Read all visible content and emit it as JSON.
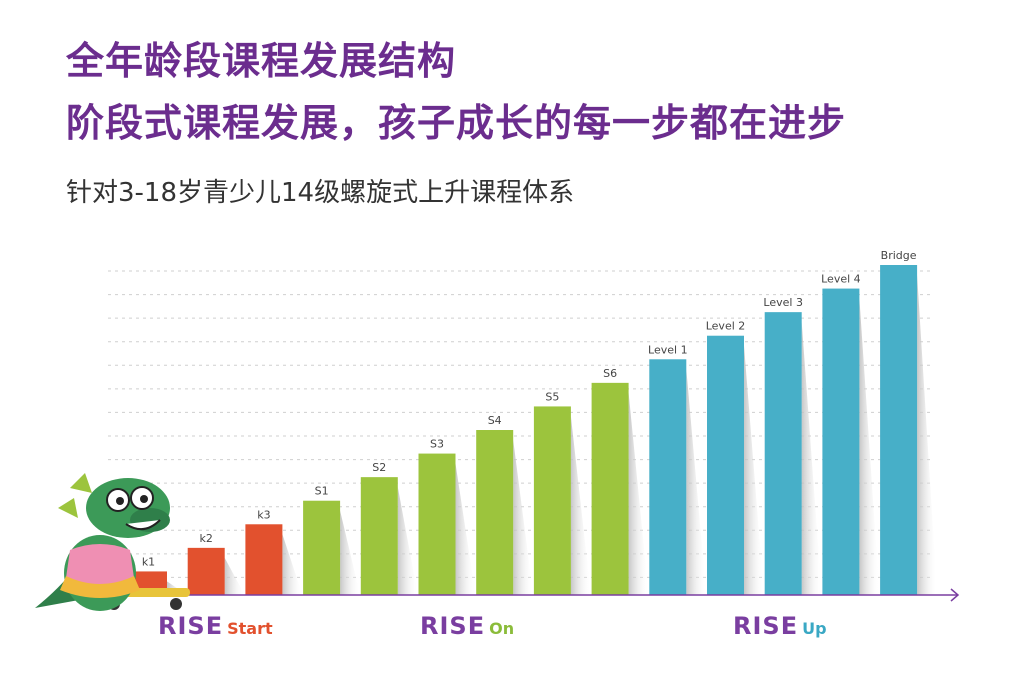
{
  "heading": {
    "title": "全年龄段课程发展结构",
    "slogan": "阶段式课程发展，孩子成长的每一步都在进步",
    "subtitle": "针对3-18岁青少儿14级螺旋式上升课程体系"
  },
  "brands": {
    "start": {
      "rise": "RISE",
      "suffix": "Start"
    },
    "on": {
      "rise": "RISE",
      "suffix": "On"
    },
    "up": {
      "rise": "RISE",
      "suffix": "Up"
    }
  },
  "colors": {
    "title": "#6b2d8e",
    "start": "#e2512e",
    "on": "#9cc43d",
    "up": "#47afc8",
    "axis": "#7a3ea0"
  },
  "mascot": {
    "icon": "green-dinosaur-on-skateboard-icon"
  },
  "chart_data": {
    "type": "bar",
    "categories": [
      "k1",
      "k2",
      "k3",
      "S1",
      "S2",
      "S3",
      "S4",
      "S5",
      "S6",
      "Level 1",
      "Level 2",
      "Level 3",
      "Level 4",
      "Bridge"
    ],
    "values": [
      1,
      2,
      3,
      4,
      5,
      6,
      7,
      8,
      9,
      10,
      11,
      12,
      13,
      14
    ],
    "groups": [
      "start",
      "start",
      "start",
      "on",
      "on",
      "on",
      "on",
      "on",
      "on",
      "up",
      "up",
      "up",
      "up",
      "up"
    ],
    "ylim": [
      0,
      14
    ],
    "grid": true,
    "xlabel": "",
    "ylabel": ""
  }
}
